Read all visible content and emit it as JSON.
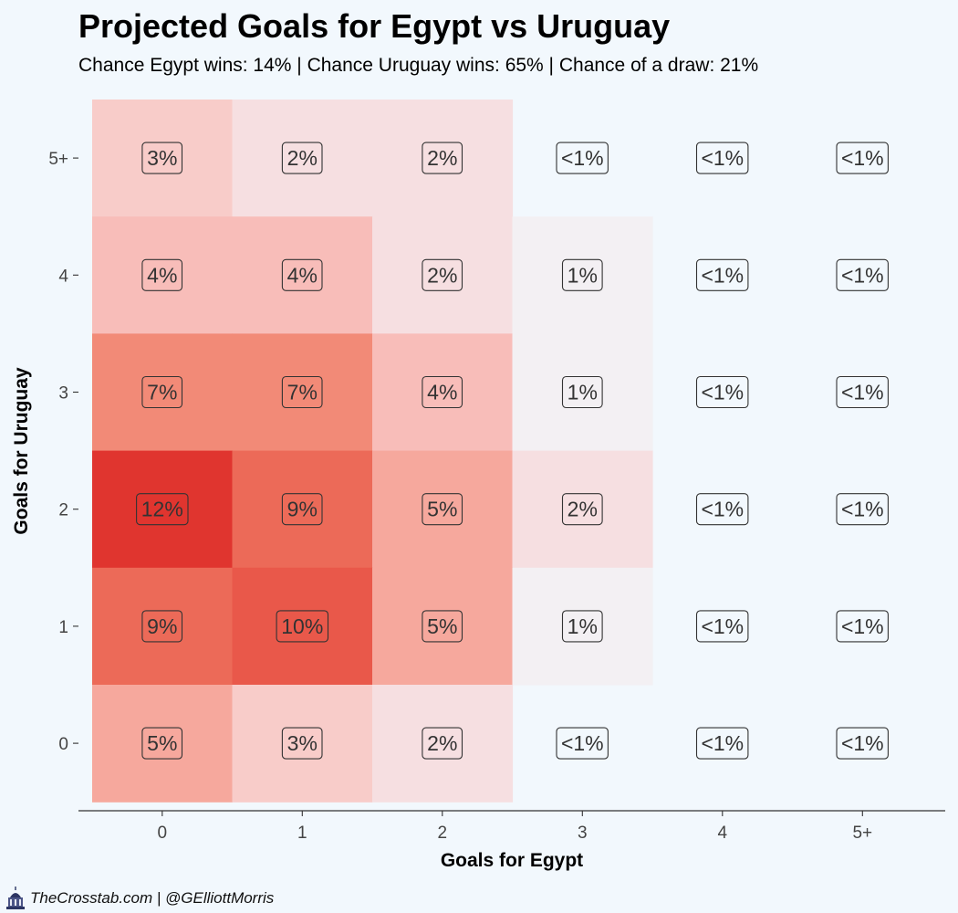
{
  "chart_data": {
    "type": "heatmap",
    "title": "Projected Goals for Egypt vs Uruguay",
    "subtitle": "Chance Egypt wins: 14% | Chance Uruguay wins: 65% | Chance of a draw: 21%",
    "xlabel": "Goals for Egypt",
    "ylabel": "Goals for Uruguay",
    "x_categories": [
      "0",
      "1",
      "2",
      "3",
      "4",
      "5+"
    ],
    "y_categories": [
      "0",
      "1",
      "2",
      "3",
      "4",
      "5+"
    ],
    "grid": false,
    "legend": "none",
    "cells": [
      {
        "x": "0",
        "y": "5+",
        "value": 3,
        "label": "3%"
      },
      {
        "x": "1",
        "y": "5+",
        "value": 2,
        "label": "2%"
      },
      {
        "x": "2",
        "y": "5+",
        "value": 2,
        "label": "2%"
      },
      {
        "x": "3",
        "y": "5+",
        "value": 0,
        "label": "<1%"
      },
      {
        "x": "4",
        "y": "5+",
        "value": 0,
        "label": "<1%"
      },
      {
        "x": "5+",
        "y": "5+",
        "value": 0,
        "label": "<1%"
      },
      {
        "x": "0",
        "y": "4",
        "value": 4,
        "label": "4%"
      },
      {
        "x": "1",
        "y": "4",
        "value": 4,
        "label": "4%"
      },
      {
        "x": "2",
        "y": "4",
        "value": 2,
        "label": "2%"
      },
      {
        "x": "3",
        "y": "4",
        "value": 1,
        "label": "1%"
      },
      {
        "x": "4",
        "y": "4",
        "value": 0,
        "label": "<1%"
      },
      {
        "x": "5+",
        "y": "4",
        "value": 0,
        "label": "<1%"
      },
      {
        "x": "0",
        "y": "3",
        "value": 7,
        "label": "7%"
      },
      {
        "x": "1",
        "y": "3",
        "value": 7,
        "label": "7%"
      },
      {
        "x": "2",
        "y": "3",
        "value": 4,
        "label": "4%"
      },
      {
        "x": "3",
        "y": "3",
        "value": 1,
        "label": "1%"
      },
      {
        "x": "4",
        "y": "3",
        "value": 0,
        "label": "<1%"
      },
      {
        "x": "5+",
        "y": "3",
        "value": 0,
        "label": "<1%"
      },
      {
        "x": "0",
        "y": "2",
        "value": 12,
        "label": "12%"
      },
      {
        "x": "1",
        "y": "2",
        "value": 9,
        "label": "9%"
      },
      {
        "x": "2",
        "y": "2",
        "value": 5,
        "label": "5%"
      },
      {
        "x": "3",
        "y": "2",
        "value": 2,
        "label": "2%"
      },
      {
        "x": "4",
        "y": "2",
        "value": 0,
        "label": "<1%"
      },
      {
        "x": "5+",
        "y": "2",
        "value": 0,
        "label": "<1%"
      },
      {
        "x": "0",
        "y": "1",
        "value": 9,
        "label": "9%"
      },
      {
        "x": "1",
        "y": "1",
        "value": 10,
        "label": "10%"
      },
      {
        "x": "2",
        "y": "1",
        "value": 5,
        "label": "5%"
      },
      {
        "x": "3",
        "y": "1",
        "value": 1,
        "label": "1%"
      },
      {
        "x": "4",
        "y": "1",
        "value": 0,
        "label": "<1%"
      },
      {
        "x": "5+",
        "y": "1",
        "value": 0,
        "label": "<1%"
      },
      {
        "x": "0",
        "y": "0",
        "value": 5,
        "label": "5%"
      },
      {
        "x": "1",
        "y": "0",
        "value": 3,
        "label": "3%"
      },
      {
        "x": "2",
        "y": "0",
        "value": 2,
        "label": "2%"
      },
      {
        "x": "3",
        "y": "0",
        "value": 0,
        "label": "<1%"
      },
      {
        "x": "4",
        "y": "0",
        "value": 0,
        "label": "<1%"
      },
      {
        "x": "5+",
        "y": "0",
        "value": 0,
        "label": "<1%"
      }
    ],
    "colors": {
      "background": "#f2f8fd",
      "cell_1": "#f3f0f3",
      "cell_2": "#f6dfe1",
      "cell_3": "#f8ccc9",
      "cell_4": "#f8bdb9",
      "cell_5": "#f6a89d",
      "cell_7": "#f28a77",
      "cell_9": "#ec6a58",
      "cell_10": "#e9584a",
      "cell_12": "#e0352f"
    }
  },
  "footer": {
    "text": "TheCrosstab.com | @GElliottMorris",
    "logo_icon": "capitol-building-icon"
  }
}
